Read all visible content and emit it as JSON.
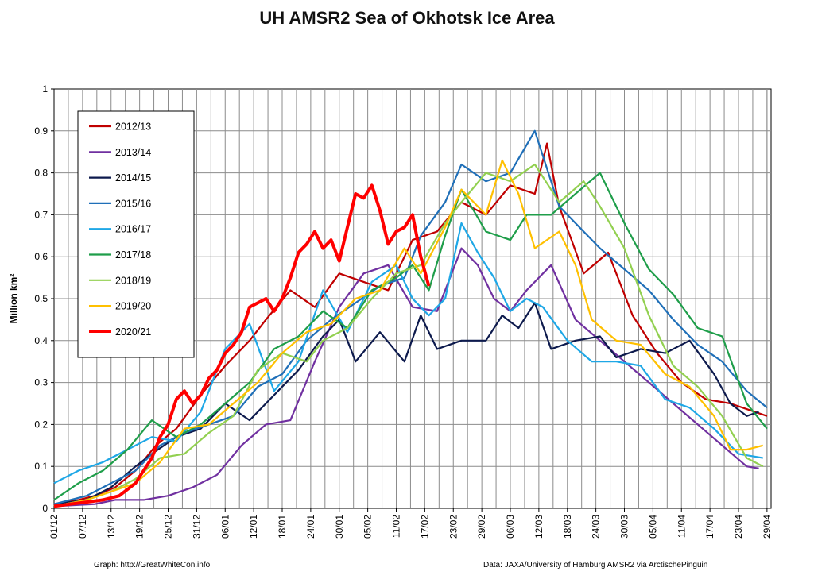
{
  "title": "UH AMSR2 Sea of Okhotsk Ice Area",
  "credits": {
    "left": "Graph: http://GreatWhiteCon.info",
    "right": "Data:  JAXA/University of Hamburg AMSR2 via  ArctischePinguin"
  },
  "chart_data": {
    "type": "line",
    "title": "UH AMSR2 Sea of Okhotsk Ice Area",
    "ylabel": "Million km²",
    "xlabel": "",
    "ylim": [
      0,
      1
    ],
    "yticks": [
      "0",
      "0.1",
      "0.2",
      "0.3",
      "0.4",
      "0.5",
      "0.6",
      "0.7",
      "0.8",
      "0.9",
      "1"
    ],
    "xticks": [
      "01/12",
      "07/12",
      "13/12",
      "19/12",
      "25/12",
      "31/12",
      "06/01",
      "12/01",
      "18/01",
      "24/01",
      "30/01",
      "05/02",
      "11/02",
      "17/02",
      "23/02",
      "29/02",
      "06/03",
      "12/03",
      "18/03",
      "24/03",
      "30/03",
      "05/04",
      "11/04",
      "17/04",
      "23/04",
      "29/04"
    ],
    "x_unit": "day index from 01/12",
    "grid": true,
    "legend_position": "top-left",
    "series": [
      {
        "name": "2012/13",
        "color": "#c00000",
        "width": 2.2,
        "points": [
          [
            0,
            0.01
          ],
          [
            6,
            0.02
          ],
          [
            10,
            0.03
          ],
          [
            15,
            0.05
          ],
          [
            20,
            0.09
          ],
          [
            25,
            0.15
          ],
          [
            30,
            0.19
          ],
          [
            36,
            0.27
          ],
          [
            42,
            0.34
          ],
          [
            48,
            0.4
          ],
          [
            52,
            0.45
          ],
          [
            58,
            0.52
          ],
          [
            64,
            0.48
          ],
          [
            70,
            0.56
          ],
          [
            76,
            0.54
          ],
          [
            82,
            0.52
          ],
          [
            88,
            0.64
          ],
          [
            94,
            0.66
          ],
          [
            100,
            0.73
          ],
          [
            106,
            0.7
          ],
          [
            112,
            0.77
          ],
          [
            118,
            0.75
          ],
          [
            121,
            0.87
          ],
          [
            124,
            0.72
          ],
          [
            130,
            0.56
          ],
          [
            136,
            0.61
          ],
          [
            142,
            0.46
          ],
          [
            148,
            0.37
          ],
          [
            154,
            0.3
          ],
          [
            160,
            0.26
          ],
          [
            166,
            0.25
          ],
          [
            172,
            0.23
          ],
          [
            175,
            0.22
          ]
        ]
      },
      {
        "name": "2013/14",
        "color": "#7030a0",
        "width": 2.2,
        "points": [
          [
            0,
            0.005
          ],
          [
            10,
            0.01
          ],
          [
            15,
            0.02
          ],
          [
            22,
            0.02
          ],
          [
            28,
            0.03
          ],
          [
            34,
            0.05
          ],
          [
            40,
            0.08
          ],
          [
            46,
            0.15
          ],
          [
            52,
            0.2
          ],
          [
            58,
            0.21
          ],
          [
            64,
            0.35
          ],
          [
            70,
            0.48
          ],
          [
            76,
            0.56
          ],
          [
            82,
            0.58
          ],
          [
            88,
            0.48
          ],
          [
            94,
            0.47
          ],
          [
            100,
            0.62
          ],
          [
            104,
            0.58
          ],
          [
            108,
            0.5
          ],
          [
            112,
            0.47
          ],
          [
            116,
            0.52
          ],
          [
            122,
            0.58
          ],
          [
            128,
            0.45
          ],
          [
            134,
            0.4
          ],
          [
            140,
            0.35
          ],
          [
            146,
            0.3
          ],
          [
            152,
            0.25
          ],
          [
            158,
            0.2
          ],
          [
            164,
            0.15
          ],
          [
            170,
            0.1
          ],
          [
            173,
            0.095
          ]
        ]
      },
      {
        "name": "2014/15",
        "color": "#0d1a4d",
        "width": 2.2,
        "points": [
          [
            0,
            0.01
          ],
          [
            8,
            0.02
          ],
          [
            14,
            0.05
          ],
          [
            20,
            0.1
          ],
          [
            24,
            0.13
          ],
          [
            30,
            0.17
          ],
          [
            36,
            0.19
          ],
          [
            42,
            0.25
          ],
          [
            48,
            0.21
          ],
          [
            54,
            0.27
          ],
          [
            60,
            0.33
          ],
          [
            66,
            0.41
          ],
          [
            70,
            0.45
          ],
          [
            74,
            0.35
          ],
          [
            80,
            0.42
          ],
          [
            86,
            0.35
          ],
          [
            90,
            0.46
          ],
          [
            94,
            0.38
          ],
          [
            100,
            0.4
          ],
          [
            106,
            0.4
          ],
          [
            110,
            0.46
          ],
          [
            114,
            0.43
          ],
          [
            118,
            0.49
          ],
          [
            122,
            0.38
          ],
          [
            128,
            0.4
          ],
          [
            134,
            0.41
          ],
          [
            138,
            0.36
          ],
          [
            144,
            0.38
          ],
          [
            150,
            0.37
          ],
          [
            156,
            0.4
          ],
          [
            162,
            0.32
          ],
          [
            166,
            0.25
          ],
          [
            170,
            0.22
          ],
          [
            173,
            0.23
          ]
        ]
      },
      {
        "name": "2015/16",
        "color": "#1f6fb8",
        "width": 2.2,
        "points": [
          [
            0,
            0.01
          ],
          [
            8,
            0.03
          ],
          [
            14,
            0.06
          ],
          [
            20,
            0.09
          ],
          [
            26,
            0.15
          ],
          [
            32,
            0.18
          ],
          [
            38,
            0.2
          ],
          [
            44,
            0.22
          ],
          [
            50,
            0.29
          ],
          [
            56,
            0.32
          ],
          [
            62,
            0.4
          ],
          [
            68,
            0.45
          ],
          [
            74,
            0.49
          ],
          [
            80,
            0.53
          ],
          [
            86,
            0.55
          ],
          [
            90,
            0.65
          ],
          [
            96,
            0.73
          ],
          [
            100,
            0.82
          ],
          [
            106,
            0.78
          ],
          [
            112,
            0.8
          ],
          [
            118,
            0.9
          ],
          [
            124,
            0.72
          ],
          [
            128,
            0.68
          ],
          [
            134,
            0.62
          ],
          [
            140,
            0.57
          ],
          [
            146,
            0.52
          ],
          [
            152,
            0.45
          ],
          [
            158,
            0.39
          ],
          [
            164,
            0.35
          ],
          [
            170,
            0.28
          ],
          [
            175,
            0.24
          ]
        ]
      },
      {
        "name": "2016/17",
        "color": "#1ea7e6",
        "width": 2.2,
        "points": [
          [
            0,
            0.06
          ],
          [
            6,
            0.09
          ],
          [
            12,
            0.11
          ],
          [
            18,
            0.14
          ],
          [
            24,
            0.17
          ],
          [
            30,
            0.16
          ],
          [
            36,
            0.23
          ],
          [
            42,
            0.38
          ],
          [
            48,
            0.44
          ],
          [
            54,
            0.28
          ],
          [
            60,
            0.35
          ],
          [
            66,
            0.52
          ],
          [
            72,
            0.42
          ],
          [
            78,
            0.54
          ],
          [
            84,
            0.58
          ],
          [
            88,
            0.5
          ],
          [
            92,
            0.46
          ],
          [
            96,
            0.5
          ],
          [
            100,
            0.68
          ],
          [
            104,
            0.61
          ],
          [
            108,
            0.55
          ],
          [
            112,
            0.47
          ],
          [
            116,
            0.5
          ],
          [
            120,
            0.48
          ],
          [
            126,
            0.4
          ],
          [
            132,
            0.35
          ],
          [
            138,
            0.35
          ],
          [
            144,
            0.34
          ],
          [
            150,
            0.26
          ],
          [
            156,
            0.24
          ],
          [
            162,
            0.19
          ],
          [
            168,
            0.13
          ],
          [
            174,
            0.12
          ]
        ]
      },
      {
        "name": "2017/18",
        "color": "#1f9e4a",
        "width": 2.2,
        "points": [
          [
            0,
            0.02
          ],
          [
            6,
            0.06
          ],
          [
            12,
            0.09
          ],
          [
            18,
            0.14
          ],
          [
            24,
            0.21
          ],
          [
            30,
            0.17
          ],
          [
            36,
            0.2
          ],
          [
            42,
            0.25
          ],
          [
            48,
            0.3
          ],
          [
            54,
            0.38
          ],
          [
            60,
            0.41
          ],
          [
            66,
            0.47
          ],
          [
            72,
            0.43
          ],
          [
            78,
            0.52
          ],
          [
            84,
            0.55
          ],
          [
            88,
            0.58
          ],
          [
            92,
            0.52
          ],
          [
            96,
            0.65
          ],
          [
            100,
            0.76
          ],
          [
            106,
            0.66
          ],
          [
            112,
            0.64
          ],
          [
            116,
            0.7
          ],
          [
            122,
            0.7
          ],
          [
            128,
            0.75
          ],
          [
            134,
            0.8
          ],
          [
            140,
            0.68
          ],
          [
            146,
            0.57
          ],
          [
            152,
            0.51
          ],
          [
            158,
            0.43
          ],
          [
            164,
            0.41
          ],
          [
            170,
            0.25
          ],
          [
            175,
            0.19
          ]
        ]
      },
      {
        "name": "2018/19",
        "color": "#92d050",
        "width": 2.2,
        "points": [
          [
            0,
            0.005
          ],
          [
            8,
            0.02
          ],
          [
            14,
            0.04
          ],
          [
            20,
            0.07
          ],
          [
            26,
            0.12
          ],
          [
            32,
            0.13
          ],
          [
            38,
            0.18
          ],
          [
            44,
            0.22
          ],
          [
            50,
            0.33
          ],
          [
            56,
            0.37
          ],
          [
            62,
            0.35
          ],
          [
            66,
            0.4
          ],
          [
            72,
            0.43
          ],
          [
            78,
            0.5
          ],
          [
            84,
            0.56
          ],
          [
            90,
            0.58
          ],
          [
            96,
            0.68
          ],
          [
            100,
            0.73
          ],
          [
            106,
            0.8
          ],
          [
            112,
            0.78
          ],
          [
            118,
            0.82
          ],
          [
            124,
            0.73
          ],
          [
            130,
            0.78
          ],
          [
            134,
            0.72
          ],
          [
            140,
            0.62
          ],
          [
            146,
            0.46
          ],
          [
            152,
            0.34
          ],
          [
            158,
            0.29
          ],
          [
            164,
            0.22
          ],
          [
            170,
            0.12
          ],
          [
            174,
            0.1
          ]
        ]
      },
      {
        "name": "2019/20",
        "color": "#ffc000",
        "width": 2.2,
        "points": [
          [
            0,
            0.005
          ],
          [
            8,
            0.02
          ],
          [
            14,
            0.04
          ],
          [
            20,
            0.06
          ],
          [
            26,
            0.11
          ],
          [
            32,
            0.19
          ],
          [
            38,
            0.2
          ],
          [
            44,
            0.25
          ],
          [
            50,
            0.3
          ],
          [
            56,
            0.37
          ],
          [
            62,
            0.42
          ],
          [
            68,
            0.44
          ],
          [
            74,
            0.5
          ],
          [
            80,
            0.52
          ],
          [
            86,
            0.62
          ],
          [
            90,
            0.56
          ],
          [
            96,
            0.67
          ],
          [
            100,
            0.76
          ],
          [
            106,
            0.7
          ],
          [
            110,
            0.83
          ],
          [
            114,
            0.75
          ],
          [
            118,
            0.62
          ],
          [
            124,
            0.66
          ],
          [
            128,
            0.58
          ],
          [
            132,
            0.45
          ],
          [
            138,
            0.4
          ],
          [
            144,
            0.39
          ],
          [
            150,
            0.32
          ],
          [
            156,
            0.29
          ],
          [
            162,
            0.22
          ],
          [
            166,
            0.14
          ],
          [
            170,
            0.14
          ],
          [
            174,
            0.15
          ]
        ]
      },
      {
        "name": "2020/21",
        "color": "#ff0000",
        "width": 4,
        "points": [
          [
            0,
            0.005
          ],
          [
            4,
            0.01
          ],
          [
            8,
            0.015
          ],
          [
            12,
            0.02
          ],
          [
            16,
            0.03
          ],
          [
            20,
            0.06
          ],
          [
            24,
            0.12
          ],
          [
            26,
            0.17
          ],
          [
            28,
            0.2
          ],
          [
            30,
            0.26
          ],
          [
            32,
            0.28
          ],
          [
            34,
            0.25
          ],
          [
            36,
            0.27
          ],
          [
            38,
            0.31
          ],
          [
            40,
            0.33
          ],
          [
            42,
            0.37
          ],
          [
            44,
            0.39
          ],
          [
            46,
            0.42
          ],
          [
            48,
            0.48
          ],
          [
            50,
            0.49
          ],
          [
            52,
            0.5
          ],
          [
            54,
            0.47
          ],
          [
            56,
            0.5
          ],
          [
            58,
            0.55
          ],
          [
            60,
            0.61
          ],
          [
            62,
            0.63
          ],
          [
            64,
            0.66
          ],
          [
            66,
            0.62
          ],
          [
            68,
            0.64
          ],
          [
            70,
            0.59
          ],
          [
            72,
            0.67
          ],
          [
            74,
            0.75
          ],
          [
            76,
            0.74
          ],
          [
            78,
            0.77
          ],
          [
            80,
            0.71
          ],
          [
            82,
            0.63
          ],
          [
            84,
            0.66
          ],
          [
            86,
            0.67
          ],
          [
            88,
            0.7
          ],
          [
            90,
            0.6
          ],
          [
            92,
            0.53
          ]
        ]
      }
    ]
  }
}
